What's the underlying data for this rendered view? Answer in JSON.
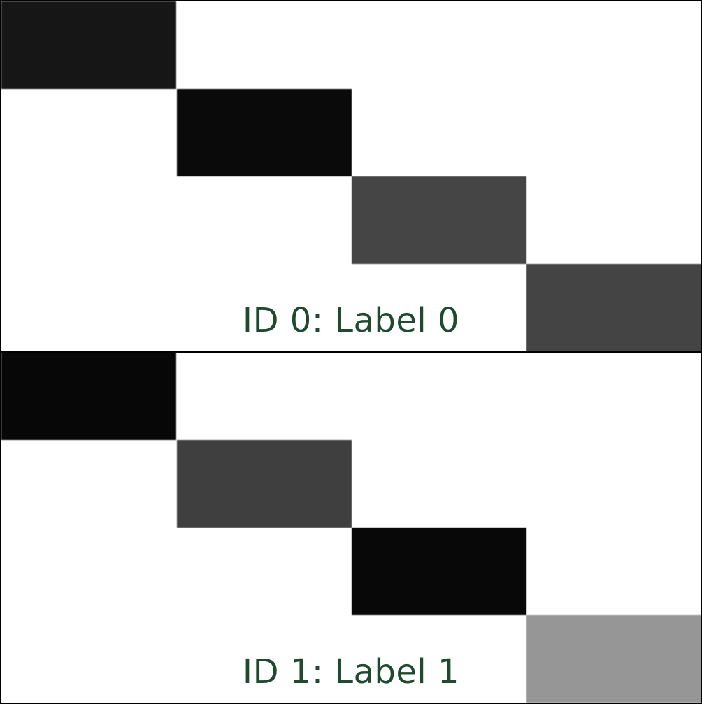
{
  "label_color": "#1e4a2f",
  "panels": [
    {
      "label": "ID 0: Label 0",
      "cells": [
        {
          "color": "#161616"
        },
        {
          "color": "#0a0a0a"
        },
        {
          "color": "#454545"
        },
        {
          "color": "#444444"
        }
      ]
    },
    {
      "label": "ID 1: Label 1",
      "cells": [
        {
          "color": "#070707"
        },
        {
          "color": "#3f3f3f"
        },
        {
          "color": "#080808"
        },
        {
          "color": "#969696"
        }
      ]
    }
  ]
}
